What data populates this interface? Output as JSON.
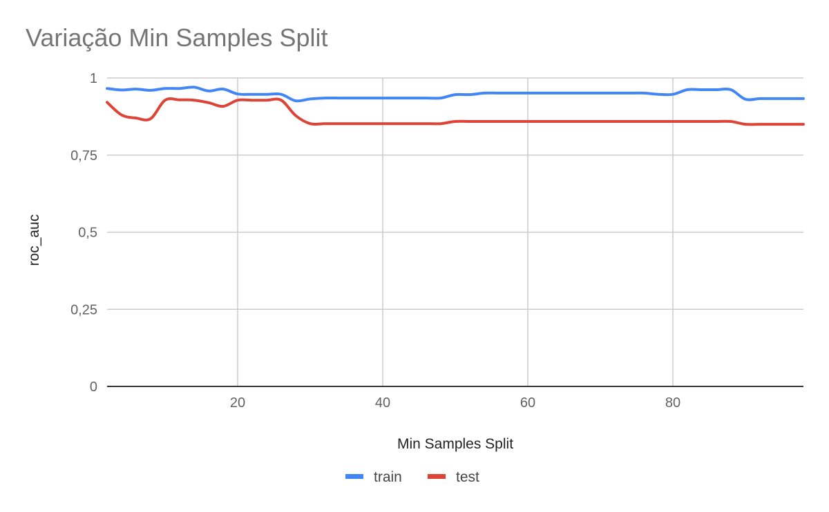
{
  "chart_data": {
    "type": "line",
    "title": "Variação Min Samples Split",
    "xlabel": "Min Samples Split",
    "ylabel": "roc_auc",
    "xlim": [
      2,
      98
    ],
    "ylim": [
      0,
      1
    ],
    "x_ticks": [
      20,
      40,
      60,
      80
    ],
    "x_tick_labels": [
      "20",
      "40",
      "60",
      "80"
    ],
    "y_ticks": [
      0,
      0.25,
      0.5,
      0.75,
      1
    ],
    "y_tick_labels": [
      "0",
      "0,25",
      "0,5",
      "0,75",
      "1"
    ],
    "grid": true,
    "legend_position": "bottom",
    "series": [
      {
        "name": "train",
        "color": "#4285f4",
        "points": [
          [
            2,
            0.966
          ],
          [
            4,
            0.961
          ],
          [
            6,
            0.964
          ],
          [
            8,
            0.96
          ],
          [
            10,
            0.966
          ],
          [
            12,
            0.966
          ],
          [
            14,
            0.97
          ],
          [
            16,
            0.958
          ],
          [
            18,
            0.964
          ],
          [
            20,
            0.948
          ],
          [
            22,
            0.947
          ],
          [
            24,
            0.947
          ],
          [
            26,
            0.947
          ],
          [
            28,
            0.926
          ],
          [
            30,
            0.932
          ],
          [
            32,
            0.935
          ],
          [
            34,
            0.935
          ],
          [
            36,
            0.935
          ],
          [
            38,
            0.935
          ],
          [
            40,
            0.935
          ],
          [
            42,
            0.935
          ],
          [
            44,
            0.935
          ],
          [
            46,
            0.935
          ],
          [
            48,
            0.935
          ],
          [
            50,
            0.946
          ],
          [
            52,
            0.946
          ],
          [
            54,
            0.951
          ],
          [
            56,
            0.951
          ],
          [
            58,
            0.951
          ],
          [
            60,
            0.951
          ],
          [
            62,
            0.951
          ],
          [
            64,
            0.951
          ],
          [
            66,
            0.951
          ],
          [
            68,
            0.951
          ],
          [
            70,
            0.951
          ],
          [
            72,
            0.951
          ],
          [
            74,
            0.951
          ],
          [
            76,
            0.951
          ],
          [
            78,
            0.947
          ],
          [
            80,
            0.947
          ],
          [
            82,
            0.962
          ],
          [
            84,
            0.962
          ],
          [
            86,
            0.962
          ],
          [
            88,
            0.962
          ],
          [
            90,
            0.931
          ],
          [
            92,
            0.933
          ],
          [
            94,
            0.933
          ],
          [
            96,
            0.933
          ],
          [
            98,
            0.933
          ]
        ]
      },
      {
        "name": "test",
        "color": "#db4437",
        "points": [
          [
            2,
            0.921
          ],
          [
            4,
            0.88
          ],
          [
            6,
            0.87
          ],
          [
            8,
            0.868
          ],
          [
            10,
            0.928
          ],
          [
            12,
            0.929
          ],
          [
            14,
            0.928
          ],
          [
            16,
            0.92
          ],
          [
            18,
            0.908
          ],
          [
            20,
            0.928
          ],
          [
            22,
            0.928
          ],
          [
            24,
            0.928
          ],
          [
            26,
            0.928
          ],
          [
            28,
            0.878
          ],
          [
            30,
            0.852
          ],
          [
            32,
            0.852
          ],
          [
            34,
            0.852
          ],
          [
            36,
            0.852
          ],
          [
            38,
            0.852
          ],
          [
            40,
            0.852
          ],
          [
            42,
            0.852
          ],
          [
            44,
            0.852
          ],
          [
            46,
            0.852
          ],
          [
            48,
            0.852
          ],
          [
            50,
            0.859
          ],
          [
            52,
            0.859
          ],
          [
            54,
            0.859
          ],
          [
            56,
            0.859
          ],
          [
            58,
            0.859
          ],
          [
            60,
            0.859
          ],
          [
            62,
            0.859
          ],
          [
            64,
            0.859
          ],
          [
            66,
            0.859
          ],
          [
            68,
            0.859
          ],
          [
            70,
            0.859
          ],
          [
            72,
            0.859
          ],
          [
            74,
            0.859
          ],
          [
            76,
            0.859
          ],
          [
            78,
            0.859
          ],
          [
            80,
            0.859
          ],
          [
            82,
            0.859
          ],
          [
            84,
            0.859
          ],
          [
            86,
            0.859
          ],
          [
            88,
            0.859
          ],
          [
            90,
            0.85
          ],
          [
            92,
            0.85
          ],
          [
            94,
            0.85
          ],
          [
            96,
            0.85
          ],
          [
            98,
            0.85
          ]
        ]
      }
    ]
  }
}
